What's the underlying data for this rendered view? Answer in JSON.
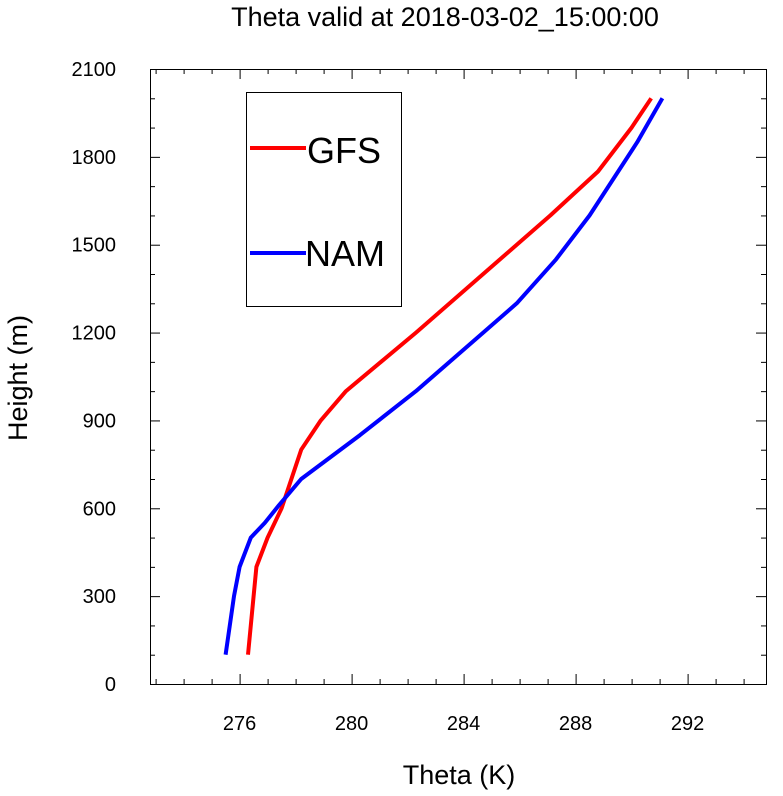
{
  "chart_data": {
    "type": "line",
    "title": "Theta valid at 2018-03-02_15:00:00",
    "xlabel": "Theta (K)",
    "ylabel": "Height (m)",
    "xlim": [
      272.8,
      294.8
    ],
    "ylim": [
      0,
      2100
    ],
    "xticks": [
      276,
      280,
      284,
      288,
      292
    ],
    "yticks": [
      0,
      300,
      600,
      900,
      1200,
      1500,
      1800,
      2100
    ],
    "grid": false,
    "legend_position": "top-left",
    "series": [
      {
        "name": "GFS",
        "color": "#ff0000",
        "x": [
          276.3,
          276.4,
          276.6,
          277.0,
          277.5,
          278.2,
          278.9,
          279.8,
          282.3,
          284.7,
          287.1,
          288.8,
          290.0,
          290.7
        ],
        "y": [
          100,
          200,
          400,
          500,
          600,
          800,
          900,
          1000,
          1200,
          1400,
          1600,
          1750,
          1900,
          2000
        ]
      },
      {
        "name": "NAM",
        "color": "#0000ff",
        "x": [
          275.5,
          275.8,
          276.0,
          276.4,
          276.9,
          277.4,
          278.2,
          280.3,
          282.3,
          284.7,
          285.9,
          287.3,
          288.5,
          290.2,
          291.1
        ],
        "y": [
          100,
          300,
          400,
          500,
          550,
          610,
          700,
          850,
          1000,
          1200,
          1300,
          1450,
          1600,
          1850,
          2000
        ]
      }
    ]
  }
}
